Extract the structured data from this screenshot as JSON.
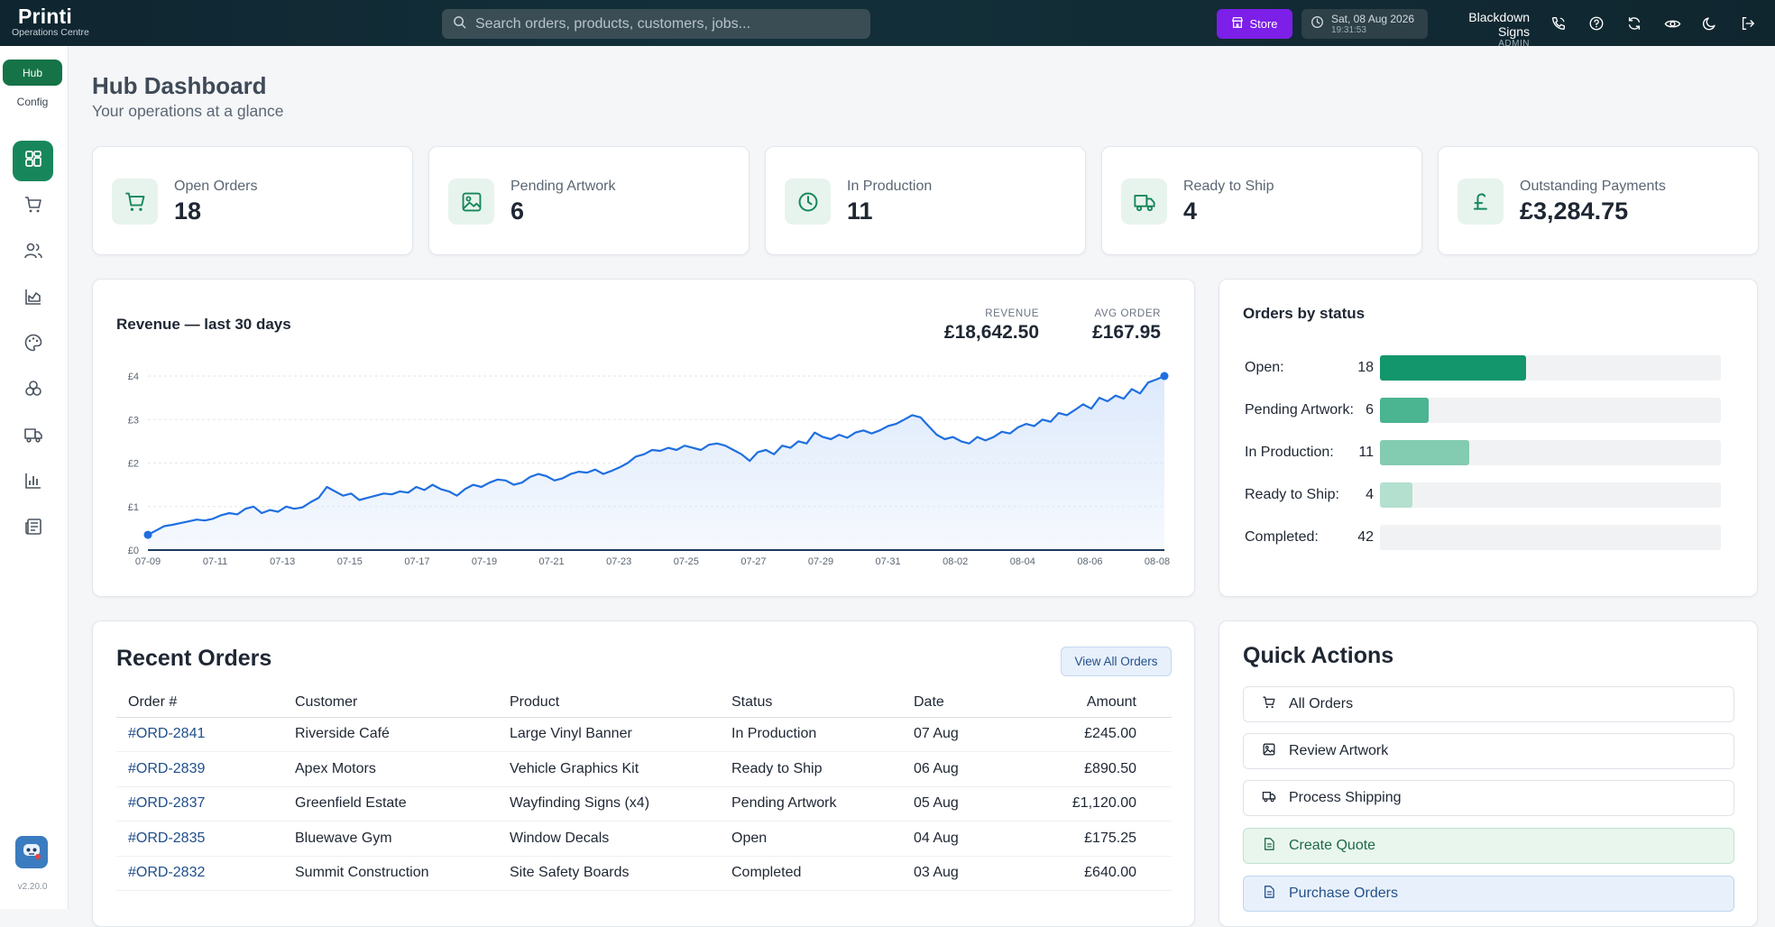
{
  "app": {
    "name": "Printi",
    "subtitle": "Operations Centre",
    "version": "v2.20.0"
  },
  "topbar": {
    "search_placeholder": "Search orders, products, customers, jobs...",
    "store_label": "Store",
    "date": "Sat, 08 Aug 2026",
    "time": "19:31:53",
    "user_name": "Blackdown Signs",
    "user_role": "ADMIN",
    "icons": [
      "phone-icon",
      "help-icon",
      "refresh-icon",
      "eye-icon",
      "moon-icon",
      "logout-icon"
    ]
  },
  "sidebar": {
    "hub_label": "Hub",
    "config_label": "Config",
    "nav_icons": [
      "dashboard-icon",
      "cart-icon",
      "users-icon",
      "area-chart-icon",
      "palette-icon",
      "components-icon",
      "truck-icon",
      "bar-chart-icon",
      "newspaper-icon"
    ]
  },
  "header": {
    "title": "Hub Dashboard",
    "subtitle": "Your operations at a glance"
  },
  "stats": [
    {
      "label": "Open Orders",
      "value": "18",
      "icon": "cart-icon"
    },
    {
      "label": "Pending Artwork",
      "value": "6",
      "icon": "image-icon"
    },
    {
      "label": "In Production",
      "value": "11",
      "icon": "clock-icon"
    },
    {
      "label": "Ready to Ship",
      "value": "4",
      "icon": "truck-icon"
    },
    {
      "label": "Outstanding Payments",
      "value": "£3,284.75",
      "icon": "pound-icon"
    }
  ],
  "revenue": {
    "title": "Revenue — last 30 days",
    "revenue_label": "REVENUE",
    "revenue_value": "£18,642.50",
    "avg_label": "AVG ORDER",
    "avg_value": "£167.95"
  },
  "chart_data": {
    "type": "area",
    "title": "Revenue — last 30 days",
    "xlabel": "",
    "ylabel": "",
    "y_ticks": [
      "£0",
      "£1",
      "£2",
      "£3",
      "£4"
    ],
    "ylim": [
      0,
      4
    ],
    "x_ticks": [
      "07-09",
      "07-11",
      "07-13",
      "07-15",
      "07-17",
      "07-19",
      "07-21",
      "07-23",
      "07-25",
      "07-27",
      "07-29",
      "07-31",
      "08-02",
      "08-04",
      "08-06",
      "08-08"
    ],
    "color": "#1f6fe0",
    "fill": "#dbe8fb",
    "grid": "horizontal dashed",
    "values": [
      0.35,
      0.45,
      0.55,
      0.58,
      0.62,
      0.66,
      0.7,
      0.68,
      0.72,
      0.8,
      0.85,
      0.82,
      0.95,
      1.0,
      0.85,
      0.92,
      0.88,
      1.0,
      0.95,
      0.98,
      1.1,
      1.2,
      1.45,
      1.35,
      1.25,
      1.3,
      1.15,
      1.2,
      1.25,
      1.3,
      1.28,
      1.35,
      1.32,
      1.45,
      1.38,
      1.5,
      1.4,
      1.35,
      1.25,
      1.4,
      1.5,
      1.45,
      1.55,
      1.62,
      1.6,
      1.5,
      1.55,
      1.68,
      1.75,
      1.7,
      1.6,
      1.65,
      1.75,
      1.8,
      1.78,
      1.85,
      1.75,
      1.82,
      1.9,
      2.0,
      2.15,
      2.2,
      2.3,
      2.28,
      2.35,
      2.3,
      2.4,
      2.35,
      2.3,
      2.42,
      2.45,
      2.4,
      2.3,
      2.2,
      2.05,
      2.25,
      2.3,
      2.2,
      2.4,
      2.35,
      2.5,
      2.45,
      2.7,
      2.6,
      2.55,
      2.65,
      2.58,
      2.7,
      2.75,
      2.68,
      2.75,
      2.85,
      2.9,
      3.0,
      3.1,
      3.05,
      2.85,
      2.65,
      2.55,
      2.6,
      2.5,
      2.45,
      2.6,
      2.52,
      2.6,
      2.72,
      2.68,
      2.82,
      2.9,
      2.85,
      3.0,
      2.95,
      3.15,
      3.1,
      3.22,
      3.35,
      3.25,
      3.5,
      3.42,
      3.55,
      3.48,
      3.7,
      3.6,
      3.85,
      3.92,
      4.0
    ]
  },
  "orders_by_status": {
    "title": "Orders by status",
    "max": 42,
    "rows": [
      {
        "label": "Open:",
        "count": 18,
        "color": "#14966c"
      },
      {
        "label": "Pending Artwork:",
        "count": 6,
        "color": "#4bb491"
      },
      {
        "label": "In Production:",
        "count": 11,
        "color": "#83cbb1"
      },
      {
        "label": "Ready to Ship:",
        "count": 4,
        "color": "#b3e0cf"
      },
      {
        "label": "Completed:",
        "count": 42,
        "color": "#f1f2f4"
      }
    ]
  },
  "recent_orders": {
    "title": "Recent Orders",
    "view_all_label": "View All Orders",
    "columns": [
      "Order #",
      "Customer",
      "Product",
      "Status",
      "Date",
      "Amount"
    ],
    "rows": [
      [
        "#ORD-2841",
        "Riverside Café",
        "Large Vinyl Banner",
        "In Production",
        "07 Aug",
        "£245.00"
      ],
      [
        "#ORD-2839",
        "Apex Motors",
        "Vehicle Graphics Kit",
        "Ready to Ship",
        "06 Aug",
        "£890.50"
      ],
      [
        "#ORD-2837",
        "Greenfield Estate",
        "Wayfinding Signs (x4)",
        "Pending Artwork",
        "05 Aug",
        "£1,120.00"
      ],
      [
        "#ORD-2835",
        "Bluewave Gym",
        "Window Decals",
        "Open",
        "04 Aug",
        "£175.25"
      ],
      [
        "#ORD-2832",
        "Summit Construction",
        "Site Safety Boards",
        "Completed",
        "03 Aug",
        "£640.00"
      ]
    ]
  },
  "quick_actions": {
    "title": "Quick Actions",
    "items": [
      {
        "label": "All Orders",
        "icon": "cart-icon",
        "style": "plain"
      },
      {
        "label": "Review Artwork",
        "icon": "image-icon",
        "style": "plain"
      },
      {
        "label": "Process Shipping",
        "icon": "truck-icon",
        "style": "plain"
      },
      {
        "label": "Create Quote",
        "icon": "document-icon",
        "style": "green"
      },
      {
        "label": "Purchase Orders",
        "icon": "document-icon",
        "style": "blue"
      }
    ]
  }
}
